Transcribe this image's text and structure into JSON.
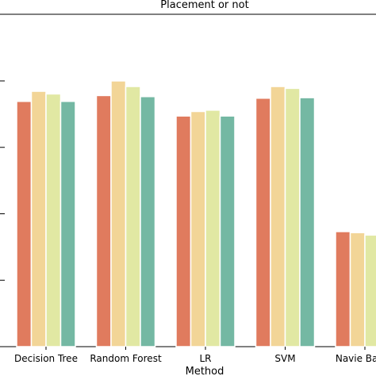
{
  "chart_data": {
    "type": "bar",
    "title": "Placement or not",
    "xlabel": "Method",
    "ylabel": "",
    "categories": [
      "Decision Tree",
      "Random Forest",
      "LR",
      "SVM",
      "Navie Bayes"
    ],
    "ylim": [
      0,
      1.0
    ],
    "series": [
      {
        "color": "#e07b5e",
        "values": [
          0.923,
          0.945,
          0.868,
          0.935,
          0.433
        ]
      },
      {
        "color": "#f2d597",
        "values": [
          0.961,
          1.0,
          0.885,
          0.979,
          0.429
        ]
      },
      {
        "color": "#e1e8a3",
        "values": [
          0.951,
          0.979,
          0.89,
          0.972,
          0.42
        ]
      },
      {
        "color": "#74b8a3",
        "values": [
          0.923,
          0.941,
          0.868,
          0.937,
          null
        ]
      }
    ],
    "grid": false,
    "legend": "none",
    "colors": {
      "axis": "#000000",
      "background": "#ffffff"
    }
  }
}
